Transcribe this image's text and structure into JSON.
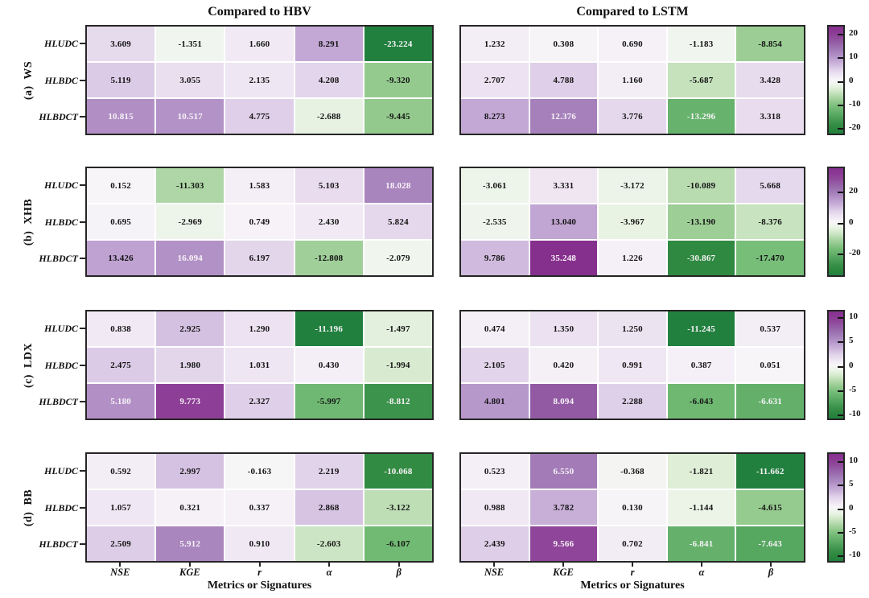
{
  "chart_data": {
    "type": "heatmap",
    "description": "Relative change (%) in metrics for hybrid models compared to HBV and LSTM across four basins",
    "figure_columns": [
      {
        "title": "Compared to HBV",
        "key": "hbv"
      },
      {
        "title": "Compared to LSTM",
        "key": "lstm"
      }
    ],
    "x_categories": [
      "NSE",
      "KGE",
      "r",
      "α",
      "β"
    ],
    "y_categories": [
      "HLUDC",
      "HLBDC",
      "HLBDCT"
    ],
    "x_axis_label": "Metrics or Signatures",
    "colormap": {
      "name": "diverging purple-white-green (PRGn-style): purple = positive, white = zero, green = negative",
      "positive_max_hex": "#86308e",
      "zero_hex": "#f8f6f9",
      "negative_max_hex": "#22803f"
    },
    "rows": [
      {
        "panel_label": "(a)  WS",
        "vmax": 23.224,
        "colorbar_ticks": [
          "20",
          "10",
          "0",
          "-10",
          "-20"
        ],
        "hbv": [
          [
            "3.609",
            "-1.351",
            "1.660",
            "8.291",
            "-23.224"
          ],
          [
            "5.119",
            "3.055",
            "2.135",
            "4.208",
            "-9.320"
          ],
          [
            "10.815",
            "10.517",
            "4.775",
            "-2.688",
            "-9.445"
          ]
        ],
        "lstm": [
          [
            "1.232",
            "0.308",
            "0.690",
            "-1.183",
            "-8.854"
          ],
          [
            "2.707",
            "4.788",
            "1.160",
            "-5.687",
            "3.428"
          ],
          [
            "8.273",
            "12.376",
            "3.776",
            "-13.296",
            "3.318"
          ]
        ]
      },
      {
        "panel_label": "(b)  XHB",
        "vmax": 35.248,
        "colorbar_ticks": [
          "20",
          "0",
          "-20"
        ],
        "hbv": [
          [
            "0.152",
            "-11.303",
            "1.583",
            "5.103",
            "18.028"
          ],
          [
            "0.695",
            "-2.969",
            "0.749",
            "2.430",
            "5.824"
          ],
          [
            "13.426",
            "16.094",
            "6.197",
            "-12.808",
            "-2.079"
          ]
        ],
        "lstm": [
          [
            "-3.061",
            "3.331",
            "-3.172",
            "-10.089",
            "5.668"
          ],
          [
            "-2.535",
            "13.040",
            "-3.967",
            "-13.190",
            "-8.376"
          ],
          [
            "9.786",
            "35.248",
            "1.226",
            "-30.867",
            "-17.470"
          ]
        ]
      },
      {
        "panel_label": "(c)  LDX",
        "vmax": 11.245,
        "colorbar_ticks": [
          "10",
          "5",
          "0",
          "-5",
          "-10"
        ],
        "hbv": [
          [
            "0.838",
            "2.925",
            "1.290",
            "-11.196",
            "-1.497"
          ],
          [
            "2.475",
            "1.980",
            "1.031",
            "0.430",
            "-1.994"
          ],
          [
            "5.180",
            "9.773",
            "2.327",
            "-5.997",
            "-8.812"
          ]
        ],
        "lstm": [
          [
            "0.474",
            "1.350",
            "1.250",
            "-11.245",
            "0.537"
          ],
          [
            "2.105",
            "0.420",
            "0.991",
            "0.387",
            "0.051"
          ],
          [
            "4.801",
            "8.094",
            "2.288",
            "-6.043",
            "-6.631"
          ]
        ]
      },
      {
        "panel_label": "(d)  BB",
        "vmax": 11.662,
        "colorbar_ticks": [
          "10",
          "5",
          "0",
          "-5",
          "-10"
        ],
        "hbv": [
          [
            "0.592",
            "2.997",
            "-0.163",
            "2.219",
            "-10.068"
          ],
          [
            "1.057",
            "0.321",
            "0.337",
            "2.868",
            "-3.122"
          ],
          [
            "2.509",
            "5.912",
            "0.910",
            "-2.603",
            "-6.107"
          ]
        ],
        "lstm": [
          [
            "0.523",
            "6.550",
            "-0.368",
            "-1.821",
            "-11.662"
          ],
          [
            "0.988",
            "3.782",
            "0.130",
            "-1.144",
            "-4.615"
          ],
          [
            "2.439",
            "9.566",
            "0.702",
            "-6.841",
            "-7.643"
          ]
        ]
      }
    ]
  }
}
